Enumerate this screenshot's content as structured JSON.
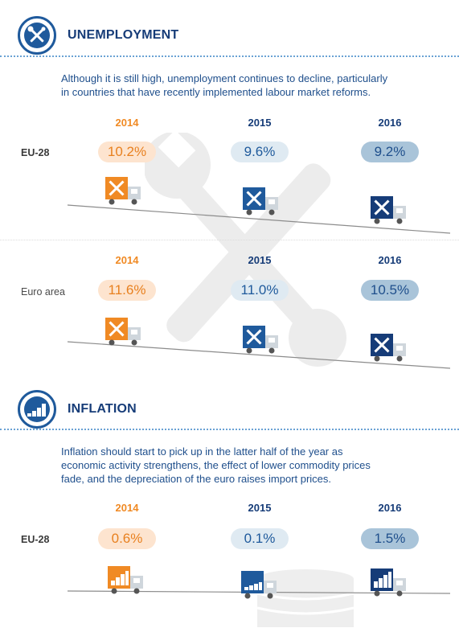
{
  "unemployment": {
    "title": "UNEMPLOYMENT",
    "intro_line1": "Although it is still high, unemployment continues to decline, particularly",
    "intro_line2": "in countries that have recently implemented labour market reforms.",
    "rows": [
      {
        "label": "EU-28",
        "years": [
          "2014",
          "2015",
          "2016"
        ],
        "values": [
          "10.2%",
          "9.6%",
          "9.2%"
        ]
      },
      {
        "label": "Euro area",
        "years": [
          "2014",
          "2015",
          "2016"
        ],
        "values": [
          "11.6%",
          "11.0%",
          "10.5%"
        ]
      }
    ]
  },
  "inflation": {
    "title": "INFLATION",
    "intro_line1": "Inflation should start to pick up in the latter half of the year as",
    "intro_line2": "economic activity strengthens, the effect of lower commodity prices",
    "intro_line3": "fade, and the depreciation of the euro raises import prices.",
    "rows": [
      {
        "label": "EU-28",
        "years": [
          "2014",
          "2015",
          "2016"
        ],
        "values": [
          "0.6%",
          "0.1%",
          "1.5%"
        ]
      }
    ]
  },
  "colors": {
    "orange": "#f08a24",
    "blue": "#1f5a9c",
    "navy": "#163c78"
  },
  "icons": {
    "unemployment": "tools-icon",
    "inflation": "coin-stacks-icon",
    "truck_unemployment": "tools-truck-icon",
    "truck_inflation": "coins-truck-icon"
  }
}
